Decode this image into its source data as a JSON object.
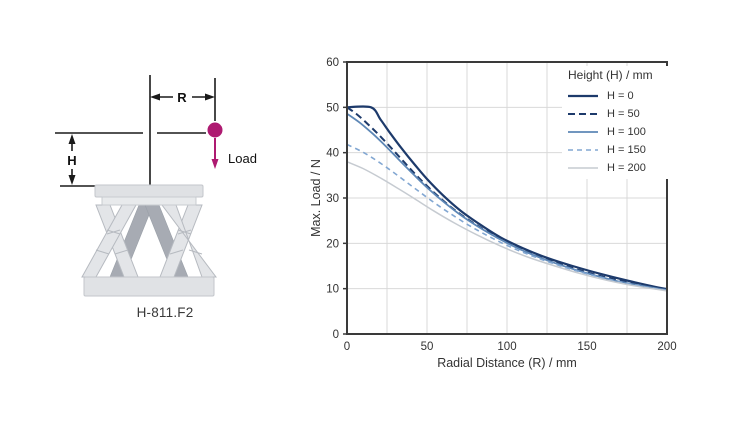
{
  "diagram": {
    "r_label": "R",
    "h_label": "H",
    "load_label": "Load",
    "caption": "H-811.F2",
    "accent_color": "#ae1a71",
    "line_color": "#1a1a1a",
    "hexapod_light": "#e3e5e8",
    "hexapod_dark": "#a7abb3",
    "hexapod_stroke": "#b6bac0",
    "plate_fill": "#dfe1e4",
    "plate_stroke": "#c3c6cb"
  },
  "chart_data": {
    "type": "line",
    "title": "",
    "xlabel": "Radial Distance (R) / mm",
    "ylabel": "Max. Load / N",
    "xlim": [
      0,
      200
    ],
    "ylim": [
      0,
      60
    ],
    "xticks": [
      0,
      50,
      100,
      150,
      200
    ],
    "yticks": [
      0,
      10,
      20,
      30,
      40,
      50,
      60
    ],
    "x_grid_step": 25,
    "y_grid_step": 10,
    "grid_on": true,
    "grid_color": "#d9d9d9",
    "frame_color": "#3a3a3a",
    "legend": {
      "title": "Height (H) / mm",
      "position": "top-right"
    },
    "series": [
      {
        "name": "H = 0",
        "color": "#1d3a6b",
        "dash": null,
        "width": 2.2,
        "points": [
          [
            0,
            50
          ],
          [
            15,
            50
          ],
          [
            21,
            47.3
          ],
          [
            27,
            44.3
          ],
          [
            34,
            41.0
          ],
          [
            42,
            37.5
          ],
          [
            50,
            34.2
          ],
          [
            60,
            30.6
          ],
          [
            71,
            27.2
          ],
          [
            83,
            24.2
          ],
          [
            96,
            21.3
          ],
          [
            110,
            18.9
          ],
          [
            125,
            16.8
          ],
          [
            141,
            15.0
          ],
          [
            158,
            13.3
          ],
          [
            175,
            11.8
          ],
          [
            190,
            10.6
          ],
          [
            200,
            9.9
          ]
        ]
      },
      {
        "name": "H = 50",
        "color": "#1d3a6b",
        "dash": "7,4",
        "width": 2.0,
        "points": [
          [
            0,
            50
          ],
          [
            6,
            48.5
          ],
          [
            13,
            46.3
          ],
          [
            20,
            43.9
          ],
          [
            28,
            40.9
          ],
          [
            36,
            37.8
          ],
          [
            45,
            34.4
          ],
          [
            55,
            31.0
          ],
          [
            66,
            27.7
          ],
          [
            78,
            24.7
          ],
          [
            91,
            21.9
          ],
          [
            105,
            19.3
          ],
          [
            120,
            17.0
          ],
          [
            136,
            15.1
          ],
          [
            153,
            13.3
          ],
          [
            170,
            11.8
          ],
          [
            186,
            10.6
          ],
          [
            200,
            9.8
          ]
        ]
      },
      {
        "name": "H = 100",
        "color": "#5d87b6",
        "dash": null,
        "width": 1.8,
        "points": [
          [
            0,
            48.6
          ],
          [
            8,
            46.6
          ],
          [
            16,
            44.2
          ],
          [
            24,
            41.5
          ],
          [
            32,
            38.6
          ],
          [
            41,
            35.4
          ],
          [
            51,
            32.0
          ],
          [
            62,
            28.7
          ],
          [
            74,
            25.5
          ],
          [
            87,
            22.6
          ],
          [
            101,
            19.9
          ],
          [
            116,
            17.5
          ],
          [
            132,
            15.4
          ],
          [
            149,
            13.5
          ],
          [
            166,
            11.9
          ],
          [
            183,
            10.7
          ],
          [
            200,
            9.7
          ]
        ]
      },
      {
        "name": "H = 150",
        "color": "#82a7d2",
        "dash": "5,4",
        "width": 1.6,
        "points": [
          [
            0,
            41.8
          ],
          [
            10,
            40.1
          ],
          [
            20,
            37.9
          ],
          [
            30,
            35.4
          ],
          [
            41,
            32.5
          ],
          [
            52,
            29.6
          ],
          [
            64,
            26.7
          ],
          [
            77,
            23.8
          ],
          [
            91,
            21.1
          ],
          [
            106,
            18.6
          ],
          [
            122,
            16.4
          ],
          [
            139,
            14.4
          ],
          [
            156,
            12.7
          ],
          [
            173,
            11.3
          ],
          [
            187,
            10.3
          ],
          [
            200,
            9.6
          ]
        ]
      },
      {
        "name": "H = 200",
        "color": "#c6cbd1",
        "dash": null,
        "width": 1.5,
        "points": [
          [
            0,
            38.0
          ],
          [
            10,
            36.5
          ],
          [
            20,
            34.6
          ],
          [
            31,
            32.3
          ],
          [
            42,
            29.9
          ],
          [
            54,
            27.2
          ],
          [
            67,
            24.5
          ],
          [
            81,
            21.9
          ],
          [
            96,
            19.4
          ],
          [
            112,
            17.1
          ],
          [
            129,
            15.1
          ],
          [
            146,
            13.3
          ],
          [
            163,
            11.8
          ],
          [
            180,
            10.6
          ],
          [
            200,
            9.5
          ]
        ]
      }
    ]
  }
}
